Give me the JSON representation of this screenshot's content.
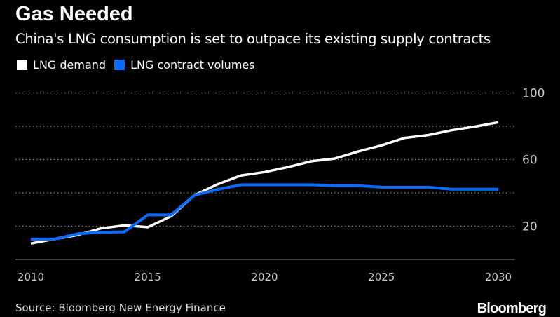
{
  "chart_data": {
    "type": "line",
    "title": "Gas Needed",
    "subtitle": "China's LNG consumption is set to outpace its existing supply contracts",
    "x": [
      2010,
      2011,
      2012,
      2013,
      2014,
      2015,
      2016,
      2017,
      2018,
      2019,
      2020,
      2021,
      2022,
      2023,
      2024,
      2025,
      2026,
      2027,
      2028,
      2029,
      2030
    ],
    "series": [
      {
        "name": "LNG demand",
        "color": "#ffffff",
        "values": [
          9.6,
          12.2,
          14.7,
          18.7,
          20.5,
          19.4,
          26.0,
          38.6,
          45.2,
          50.5,
          52.5,
          55.5,
          59.0,
          60.6,
          64.8,
          68.5,
          73.0,
          74.7,
          77.6,
          79.8,
          82.4
        ]
      },
      {
        "name": "LNG contract volumes",
        "color": "#0a6cff",
        "values": [
          12.2,
          12.2,
          15.4,
          16.4,
          16.6,
          26.8,
          26.8,
          38.6,
          42.1,
          44.9,
          44.9,
          44.9,
          44.9,
          44.3,
          44.3,
          43.4,
          43.4,
          43.4,
          42.2,
          42.2,
          42.2
        ]
      }
    ],
    "xticks": [
      "2010",
      "2015",
      "2020",
      "2025",
      "2030"
    ],
    "yticks": [
      "20",
      "60",
      "100"
    ],
    "gridlines": [
      20,
      40,
      60,
      80,
      100
    ],
    "xlim": [
      2010,
      2030
    ],
    "ylim": [
      0,
      100
    ],
    "xlabel": "",
    "ylabel": "",
    "legend": "top-left",
    "grid": true
  },
  "source": "Source: Bloomberg New Energy Finance",
  "logo": "Bloomberg"
}
